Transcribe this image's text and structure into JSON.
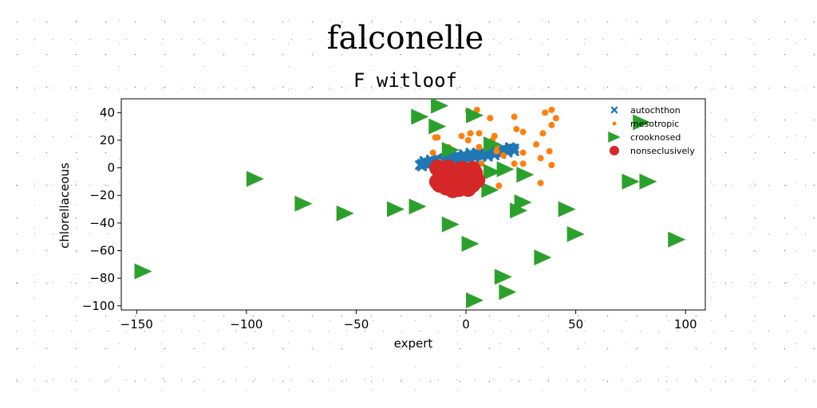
{
  "chart_data": {
    "type": "scatter",
    "title": "falconelle",
    "subtitle": "F witloof",
    "xlabel": "expert",
    "ylabel": "chlorellaceous",
    "xlim": [
      -157,
      109
    ],
    "ylim": [
      -103,
      50
    ],
    "xticks": [
      -150,
      -100,
      -50,
      0,
      50,
      100
    ],
    "yticks": [
      -100,
      -80,
      -60,
      -40,
      -20,
      0,
      20,
      40
    ],
    "grid": false,
    "legend_position": "top-right",
    "series": [
      {
        "name": "autochthon",
        "marker": "x",
        "color": "#1f77b4",
        "points": [
          [
            -21,
            2
          ],
          [
            -20,
            3
          ],
          [
            -19,
            3
          ],
          [
            -18,
            3
          ],
          [
            -17,
            4
          ],
          [
            -16,
            4
          ],
          [
            -15,
            4
          ],
          [
            -14,
            5
          ],
          [
            -13,
            5
          ],
          [
            -12,
            5
          ],
          [
            -11,
            6
          ],
          [
            -10,
            6
          ],
          [
            -9,
            6
          ],
          [
            -8,
            6
          ],
          [
            -7,
            7
          ],
          [
            -6,
            7
          ],
          [
            -5,
            7
          ],
          [
            -4,
            7
          ],
          [
            -3,
            8
          ],
          [
            -2,
            8
          ],
          [
            -1,
            8
          ],
          [
            0,
            8
          ],
          [
            1,
            8
          ],
          [
            2,
            9
          ],
          [
            3,
            9
          ],
          [
            4,
            9
          ],
          [
            5,
            9
          ],
          [
            6,
            10
          ],
          [
            7,
            10
          ],
          [
            8,
            10
          ],
          [
            9,
            10
          ],
          [
            10,
            11
          ],
          [
            11,
            11
          ],
          [
            12,
            11
          ],
          [
            13,
            11
          ],
          [
            14,
            12
          ],
          [
            15,
            12
          ],
          [
            16,
            12
          ],
          [
            17,
            13
          ],
          [
            18,
            13
          ],
          [
            19,
            13
          ],
          [
            20,
            14
          ],
          [
            21,
            14
          ],
          [
            22,
            14
          ],
          [
            -20,
            1
          ],
          [
            -17,
            2
          ],
          [
            -14,
            3
          ],
          [
            -11,
            4
          ],
          [
            -8,
            4
          ],
          [
            -5,
            5
          ],
          [
            -2,
            6
          ],
          [
            1,
            6
          ],
          [
            4,
            7
          ],
          [
            7,
            8
          ],
          [
            10,
            8
          ],
          [
            13,
            9
          ],
          [
            16,
            10
          ],
          [
            19,
            11
          ],
          [
            22,
            12
          ],
          [
            -19,
            5
          ],
          [
            -16,
            6
          ],
          [
            -13,
            7
          ],
          [
            -10,
            7
          ],
          [
            -7,
            9
          ],
          [
            -4,
            9
          ],
          [
            -1,
            10
          ],
          [
            2,
            11
          ],
          [
            5,
            11
          ],
          [
            8,
            12
          ],
          [
            11,
            13
          ],
          [
            14,
            13
          ],
          [
            17,
            14
          ],
          [
            20,
            15
          ]
        ]
      },
      {
        "name": "mesotropic",
        "marker": "o",
        "color": "#ff7f0e",
        "points": [
          [
            5,
            42
          ],
          [
            1,
            41
          ],
          [
            11,
            36
          ],
          [
            22,
            37
          ],
          [
            36,
            40
          ],
          [
            39,
            42
          ],
          [
            41,
            36
          ],
          [
            39,
            31
          ],
          [
            23,
            28
          ],
          [
            26,
            26
          ],
          [
            35,
            25
          ],
          [
            2,
            25
          ],
          [
            6,
            25
          ],
          [
            13,
            23
          ],
          [
            -13,
            22
          ],
          [
            -14,
            22
          ],
          [
            -2,
            23
          ],
          [
            1,
            20
          ],
          [
            12,
            20
          ],
          [
            14,
            16
          ],
          [
            32,
            17
          ],
          [
            38,
            12
          ],
          [
            -15,
            11
          ],
          [
            -8,
            15
          ],
          [
            6,
            15
          ],
          [
            14,
            12
          ],
          [
            17,
            9
          ],
          [
            26,
            11
          ],
          [
            34,
            7
          ],
          [
            39,
            2
          ],
          [
            22,
            3
          ],
          [
            26,
            3
          ],
          [
            -12,
            4
          ],
          [
            7,
            3
          ],
          [
            34,
            -11
          ],
          [
            15,
            -13
          ]
        ]
      },
      {
        "name": "crooknosed",
        "marker": ">",
        "color": "#2ca02c",
        "points": [
          [
            -147,
            -75
          ],
          [
            -96,
            -8
          ],
          [
            -74,
            -26
          ],
          [
            -55,
            -33
          ],
          [
            -32,
            -30
          ],
          [
            -22,
            -28
          ],
          [
            -21,
            37
          ],
          [
            -12,
            45
          ],
          [
            -13,
            30
          ],
          [
            -7,
            13
          ],
          [
            -7,
            -41
          ],
          [
            2,
            -55
          ],
          [
            4,
            38
          ],
          [
            4,
            -96
          ],
          [
            12,
            17
          ],
          [
            12,
            -3
          ],
          [
            11,
            -16
          ],
          [
            18,
            -1
          ],
          [
            27,
            -5
          ],
          [
            26,
            -25
          ],
          [
            24,
            -31
          ],
          [
            17,
            -79
          ],
          [
            19,
            -90
          ],
          [
            35,
            -65
          ],
          [
            46,
            -30
          ],
          [
            50,
            -48
          ],
          [
            75,
            -10
          ],
          [
            83,
            -10
          ],
          [
            80,
            33
          ],
          [
            96,
            -52
          ]
        ]
      },
      {
        "name": "nonseclusively",
        "marker": "o",
        "color": "#d62728",
        "points": [
          [
            -13,
            0
          ],
          [
            -10,
            -2
          ],
          [
            -8,
            0
          ],
          [
            -5,
            -3
          ],
          [
            -2,
            -1
          ],
          [
            1,
            -2
          ],
          [
            4,
            -4
          ],
          [
            -12,
            -12
          ],
          [
            -9,
            -14
          ],
          [
            -6,
            -13
          ],
          [
            -3,
            -15
          ],
          [
            0,
            -14
          ],
          [
            3,
            -12
          ],
          [
            -11,
            -6
          ],
          [
            -7,
            -8
          ],
          [
            -4,
            -6
          ],
          [
            -1,
            -9
          ],
          [
            2,
            -7
          ],
          [
            5,
            -9
          ],
          [
            -13,
            -10
          ],
          [
            -6,
            -16
          ],
          [
            -2,
            -11
          ],
          [
            1,
            -15
          ],
          [
            -9,
            -3
          ],
          [
            3,
            -1
          ]
        ]
      }
    ]
  }
}
